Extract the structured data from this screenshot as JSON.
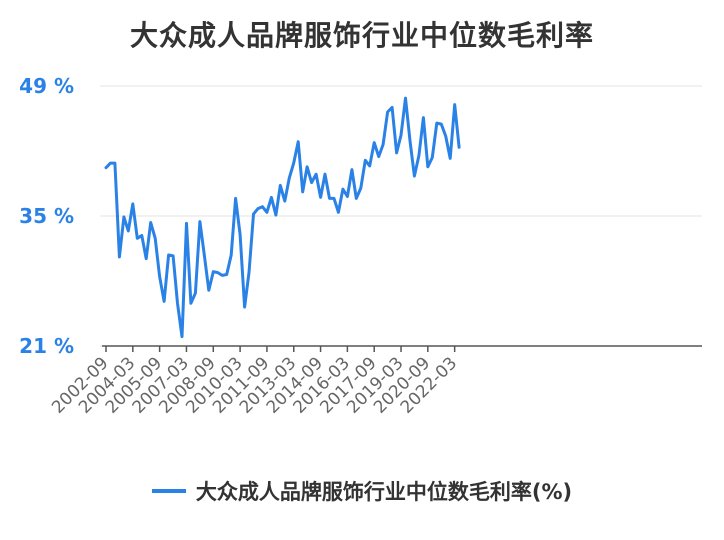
{
  "chart_data": {
    "type": "line",
    "title": "大众成人品牌服饰行业中位数毛利率",
    "ylim": [
      21,
      49
    ],
    "y_ticks": [
      "21 %",
      "35 %",
      "49 %"
    ],
    "y_tick_values": [
      21,
      35,
      49
    ],
    "x_ticks": [
      "2002-09",
      "2004-03",
      "2005-09",
      "2007-03",
      "2008-09",
      "2010-03",
      "2011-09",
      "2013-03",
      "2014-09",
      "2016-03",
      "2017-09",
      "2019-03",
      "2020-09",
      "2022-03"
    ],
    "x_tick_index": [
      0,
      6,
      12,
      18,
      24,
      30,
      36,
      42,
      48,
      54,
      60,
      66,
      72,
      78
    ],
    "grid": true,
    "legend_position": "bottom",
    "color": "#2b82e6",
    "series": [
      {
        "name": "大众成人品牌服饰行业中位数毛利率(%)",
        "values": [
          40.2,
          40.7,
          40.7,
          30.6,
          34.9,
          33.4,
          36.3,
          32.6,
          32.9,
          30.4,
          34.3,
          32.6,
          28.5,
          25.8,
          30.8,
          30.7,
          25.6,
          22.0,
          34.2,
          25.6,
          26.7,
          34.4,
          30.8,
          27.0,
          29.0,
          28.9,
          28.6,
          28.7,
          30.8,
          36.9,
          33.0,
          25.2,
          28.9,
          35.2,
          35.8,
          36.0,
          35.4,
          37.0,
          35.1,
          38.3,
          36.6,
          39.1,
          40.7,
          43.0,
          37.6,
          40.3,
          38.6,
          39.5,
          37.0,
          39.5,
          36.9,
          36.9,
          35.4,
          37.9,
          37.1,
          40.0,
          36.9,
          38.0,
          41.0,
          40.4,
          42.9,
          41.4,
          42.7,
          46.2,
          46.7,
          41.8,
          43.7,
          47.7,
          43.1,
          39.3,
          41.5,
          45.6,
          40.3,
          41.3,
          45.0,
          44.9,
          43.6,
          41.2,
          47.0,
          42.4
        ]
      }
    ]
  }
}
